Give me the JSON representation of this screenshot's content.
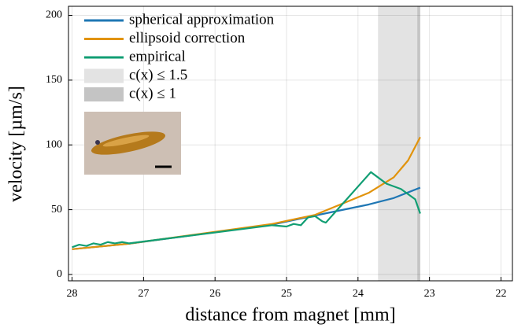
{
  "chart_data": {
    "type": "line",
    "x_label": "distance from magnet [mm]",
    "y_label": "velocity [µm/s]",
    "xlim": [
      28.05,
      21.84
    ],
    "ylim": [
      -4.9,
      207
    ],
    "xticks": [
      28,
      27,
      26,
      25,
      24,
      23,
      22
    ],
    "yticks": [
      0,
      50,
      100,
      150,
      200
    ],
    "grid": true,
    "shaded_regions": [
      {
        "name": "c(x) ≤ 1.5",
        "xlim": [
          23.72,
          23.145
        ],
        "color": "#e3e3e3"
      },
      {
        "name": "c(x) ≤ 1",
        "xlim": [
          23.17,
          23.13
        ],
        "color": "#c4c4c4"
      }
    ],
    "series": [
      {
        "name": "spherical approximation",
        "color": "#1f77b4",
        "x": [
          28,
          27.2,
          25.2,
          24.6,
          23.85,
          23.5,
          23.13
        ],
        "values": [
          19.5,
          23.8,
          38.5,
          45.5,
          54,
          59,
          67
        ]
      },
      {
        "name": "ellipsoid correction",
        "color": "#e1930c",
        "x": [
          28,
          27.2,
          25.2,
          24.6,
          23.85,
          23.5,
          23.3,
          23.13
        ],
        "values": [
          19.5,
          23.8,
          39,
          46,
          63,
          75,
          88,
          106
        ]
      },
      {
        "name": "empirical",
        "color": "#119e73",
        "x": [
          28,
          27.9,
          27.8,
          27.7,
          27.6,
          27.5,
          27.4,
          27.3,
          27.2,
          25.2,
          25.0,
          24.9,
          24.8,
          24.7,
          24.6,
          24.5,
          24.45,
          23.82,
          23.6,
          23.4,
          23.2,
          23.13
        ],
        "values": [
          21,
          23,
          22,
          24,
          23,
          25,
          24,
          25,
          24,
          38,
          37,
          39,
          38,
          44,
          45,
          41,
          40,
          79,
          70,
          66,
          58,
          47
        ]
      }
    ]
  }
}
